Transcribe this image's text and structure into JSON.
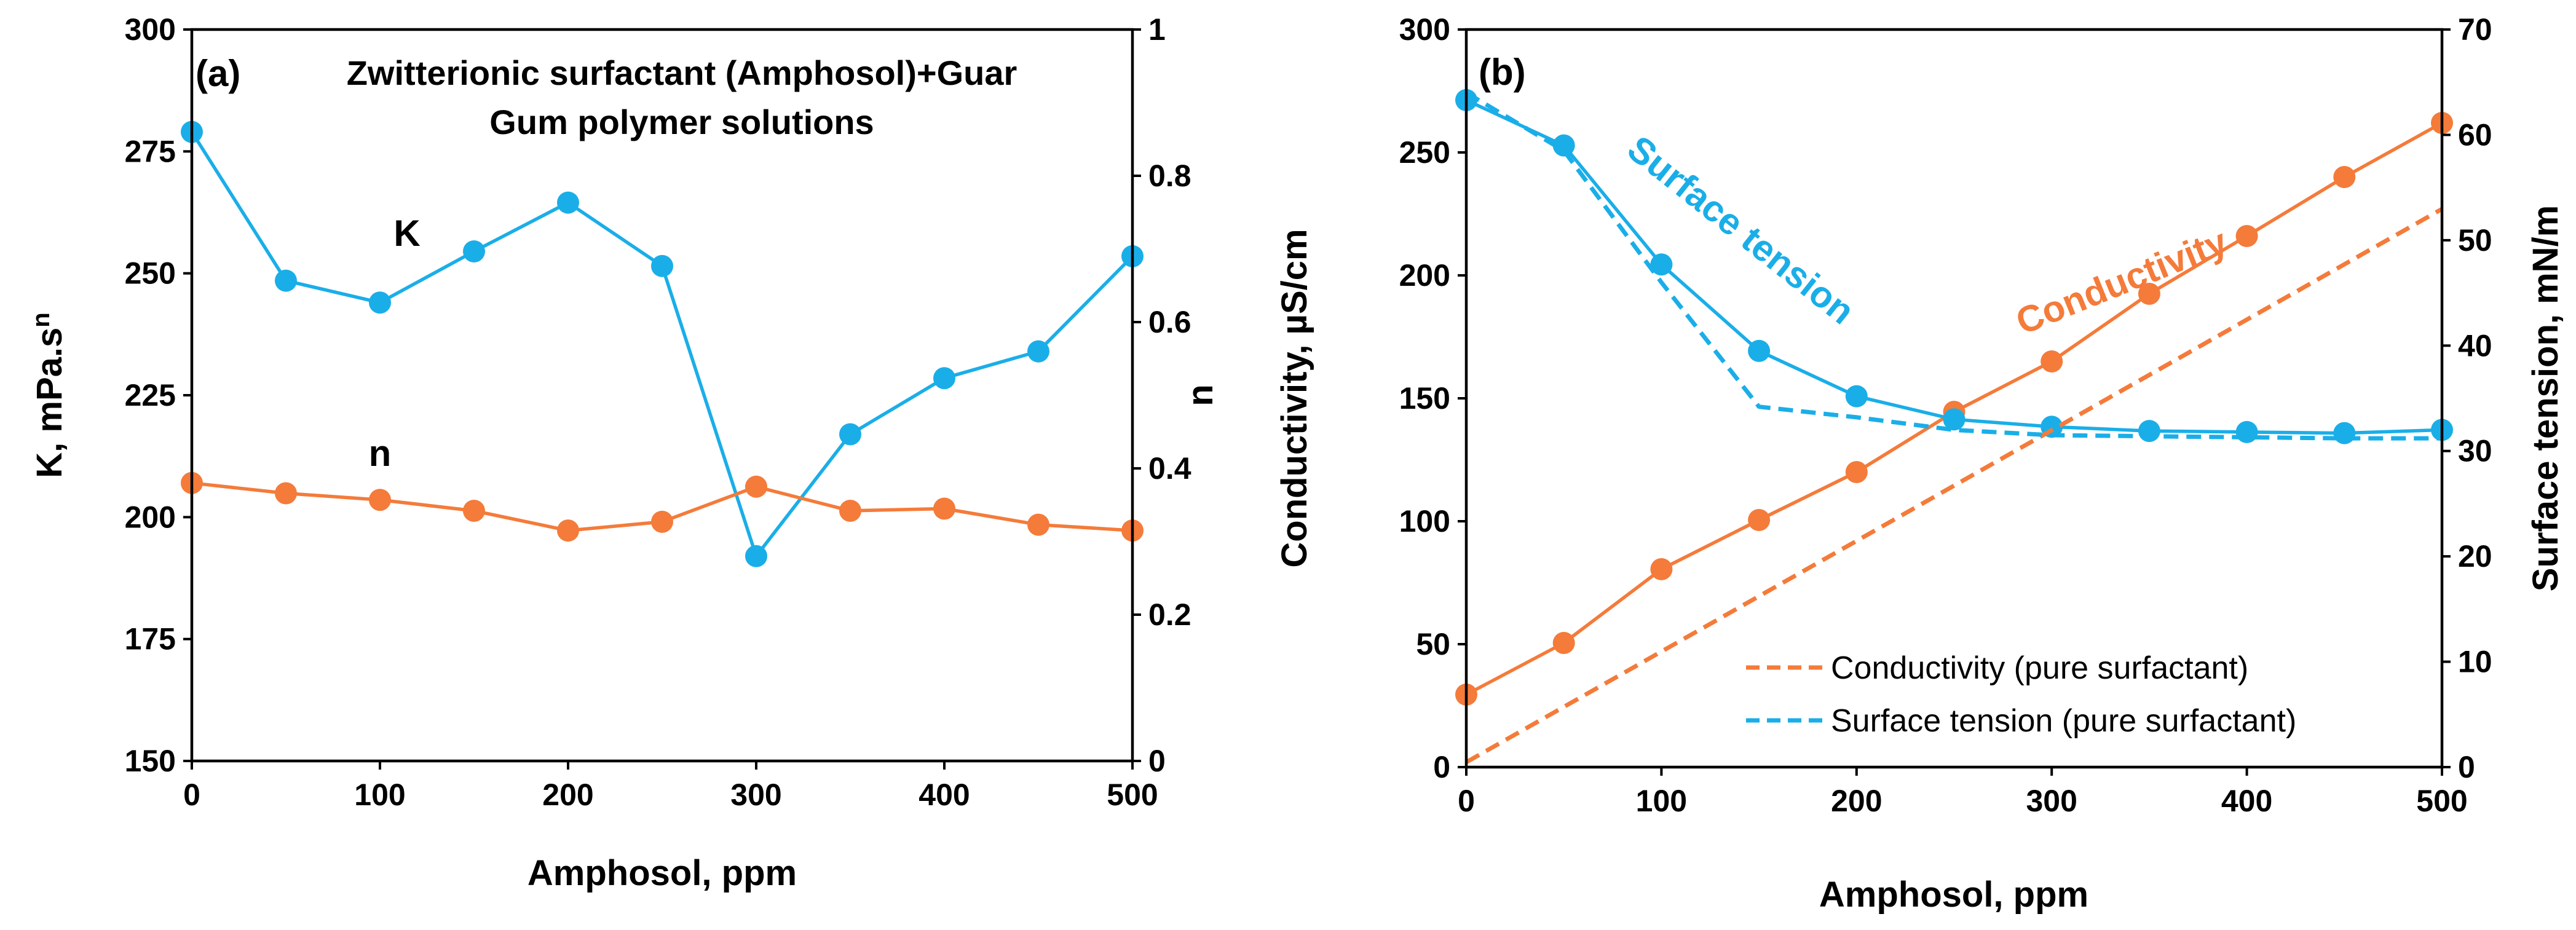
{
  "colors": {
    "blue": "#1aaee8",
    "orange": "#f47b3a",
    "axis": "#000000"
  },
  "chart_data": [
    {
      "panel": "(a)",
      "type": "line",
      "title_lines": [
        "Zwitterionic surfactant (Amphosol)+Guar",
        "Gum polymer solutions"
      ],
      "xlabel": "Amphosol, ppm",
      "xlim": [
        0,
        500
      ],
      "xticks": [
        0,
        100,
        200,
        300,
        400,
        500
      ],
      "xtick_labels": [
        "0",
        "100",
        "200",
        "300",
        "400",
        "500"
      ],
      "ylabel_left": "K, mPa.s",
      "ylabel_left_sup": "n",
      "ylim_left": [
        150,
        300
      ],
      "yticks_left": [
        150,
        175,
        200,
        225,
        250,
        275,
        300
      ],
      "ytick_labels_left": [
        "150",
        "175",
        "200",
        "225",
        "250",
        "275",
        "300"
      ],
      "ylabel_right": "n",
      "ylim_right": [
        0,
        1
      ],
      "yticks_right": [
        0,
        0.2,
        0.4,
        0.6,
        0.8,
        1
      ],
      "ytick_labels_right": [
        "0",
        "0.2",
        "0.4",
        "0.6",
        "0.8",
        "1"
      ],
      "series": [
        {
          "name": "K",
          "axis": "left",
          "color": "#1aaee8",
          "dashed": false,
          "markers": true,
          "x": [
            0,
            50,
            100,
            150,
            200,
            250,
            300,
            350,
            400,
            450,
            500
          ],
          "y": [
            279,
            248.5,
            244,
            254.5,
            264.5,
            251.5,
            192,
            217,
            228.5,
            234,
            253.5
          ]
        },
        {
          "name": "n",
          "axis": "right",
          "color": "#f47b3a",
          "dashed": false,
          "markers": true,
          "x": [
            0,
            50,
            100,
            150,
            200,
            250,
            300,
            350,
            400,
            450,
            500
          ],
          "y": [
            0.38,
            0.366,
            0.357,
            0.342,
            0.315,
            0.327,
            0.375,
            0.342,
            0.345,
            0.323,
            0.315
          ]
        }
      ]
    },
    {
      "panel": "(b)",
      "type": "line",
      "xlabel": "Amphosol, ppm",
      "xlim": [
        0,
        500
      ],
      "xticks": [
        0,
        100,
        200,
        300,
        400,
        500
      ],
      "xtick_labels": [
        "0",
        "100",
        "200",
        "300",
        "400",
        "500"
      ],
      "ylabel_left": "Conductivity, µS/cm",
      "ylim_left": [
        0,
        300
      ],
      "yticks_left": [
        0,
        50,
        100,
        150,
        200,
        250,
        300
      ],
      "ytick_labels_left": [
        "0",
        "50",
        "100",
        "150",
        "200",
        "250",
        "300"
      ],
      "ylabel_right": "Surface tension, mN/m",
      "ylim_right": [
        0,
        70
      ],
      "yticks_right": [
        0,
        10,
        20,
        30,
        40,
        50,
        60,
        70
      ],
      "ytick_labels_right": [
        "0",
        "10",
        "20",
        "30",
        "40",
        "50",
        "60",
        "70"
      ],
      "series": [
        {
          "name": "Conductivity",
          "axis": "left",
          "color": "#f47b3a",
          "dashed": false,
          "markers": true,
          "x": [
            0,
            50,
            100,
            150,
            200,
            250,
            300,
            350,
            400,
            450,
            500
          ],
          "y": [
            29.5,
            50.5,
            80.5,
            100.5,
            120,
            144.5,
            165,
            192.5,
            216,
            240,
            262
          ]
        },
        {
          "name": "Surface tension",
          "axis": "right",
          "color": "#1aaee8",
          "dashed": false,
          "markers": true,
          "x": [
            0,
            50,
            100,
            150,
            200,
            250,
            300,
            350,
            400,
            450,
            500
          ],
          "y": [
            63.3,
            59,
            47.7,
            39.5,
            35.2,
            33,
            32.3,
            31.9,
            31.8,
            31.7,
            32
          ]
        },
        {
          "name": "Conductivity (pure surfactant)",
          "axis": "left",
          "color": "#f47b3a",
          "dashed": true,
          "markers": false,
          "x": [
            0,
            500
          ],
          "y": [
            2,
            227
          ]
        },
        {
          "name": "Surface tension (pure surfactant)",
          "axis": "right",
          "color": "#1aaee8",
          "dashed": true,
          "markers": false,
          "x": [
            0,
            50,
            100,
            150,
            200,
            250,
            300,
            350,
            400,
            450,
            500
          ],
          "y": [
            64,
            58.5,
            46,
            34.2,
            33.2,
            32,
            31.5,
            31.4,
            31.3,
            31.2,
            31.2
          ]
        }
      ],
      "annotations": [
        {
          "text": "Surface tension",
          "color": "#1aaee8"
        },
        {
          "text": "Conductivity",
          "color": "#f47b3a"
        }
      ],
      "legend": {
        "position": "lower-right",
        "entries": [
          "Conductivity (pure surfactant)",
          "Surface tension (pure surfactant)"
        ]
      }
    }
  ]
}
